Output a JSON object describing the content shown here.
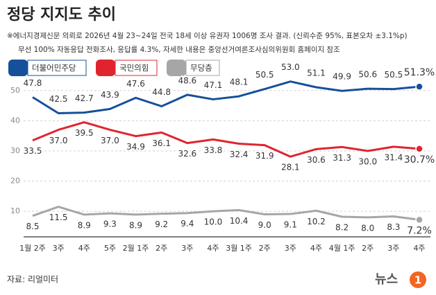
{
  "chart_data": {
    "type": "line",
    "title": "정당 지지도 추이",
    "subtitle": [
      "※에너지경제신문 의뢰로 2026년 4월 23~24일 전국 18세 이상 유권자 1006명 조사 결과. (신뢰수준 95%, 표본오차 ±3.1%p)",
      "무선 100% 자동응답 전화조사, 응답률 4.3%, 자세한 내용은 중앙선거여론조사심의위원회 홈페이지 참조"
    ],
    "categories": [
      "1월 2주",
      "3주",
      "4주",
      "5주",
      "2월 1주",
      "2주",
      "3주",
      "4주",
      "3월 1주",
      "2주",
      "3주",
      "4주",
      "4월 1주",
      "2주",
      "3주",
      "4주"
    ],
    "series": [
      {
        "name": "더불어민주당",
        "color": "#15509a",
        "label_side": "above",
        "values": [
          47.8,
          42.5,
          42.7,
          43.9,
          47.6,
          44.8,
          48.6,
          47.1,
          48.1,
          50.5,
          53.0,
          51.1,
          49.9,
          50.6,
          50.5,
          51.3
        ],
        "value_labels": [
          "47.8",
          "42.5",
          "42.7",
          "43.9",
          "47.6",
          "44.8",
          "48.6",
          "47.1",
          "48.1",
          "50.5",
          "53.0",
          "51.1",
          "49.9",
          "50.6",
          "50.5",
          "51.3%"
        ]
      },
      {
        "name": "국민의힘",
        "color": "#e0242f",
        "label_side": "below",
        "values": [
          33.5,
          37.0,
          39.5,
          37.0,
          34.9,
          36.1,
          32.6,
          33.8,
          32.4,
          31.9,
          28.1,
          30.6,
          31.3,
          30.0,
          31.4,
          30.7
        ],
        "value_labels": [
          "33.5",
          "37.0",
          "39.5",
          "37.0",
          "34.9",
          "36.1",
          "32.6",
          "33.8",
          "32.4",
          "31.9",
          "28.1",
          "30.6",
          "31.3",
          "30.0",
          "31.4",
          "30.7%"
        ]
      },
      {
        "name": "무당층",
        "color": "#a6a6a6",
        "label_side": "below",
        "values": [
          8.5,
          11.5,
          8.9,
          9.3,
          8.9,
          9.2,
          9.4,
          10.0,
          10.4,
          9.0,
          9.1,
          10.2,
          8.2,
          8.0,
          8.3,
          7.2
        ],
        "value_labels": [
          "8.5",
          "11.5",
          "8.9",
          "9.3",
          "8.9",
          "9.2",
          "9.4",
          "10.0",
          "10.4",
          "9.0",
          "9.1",
          "10.2",
          "8.2",
          "8.0",
          "8.3",
          "7.2%"
        ]
      }
    ],
    "ylim": [
      2,
      55
    ],
    "yticks": [
      10,
      20,
      30,
      40,
      50
    ],
    "grid": true,
    "source": "자료: 리얼미터",
    "logo": [
      "뉴스",
      "1"
    ]
  }
}
